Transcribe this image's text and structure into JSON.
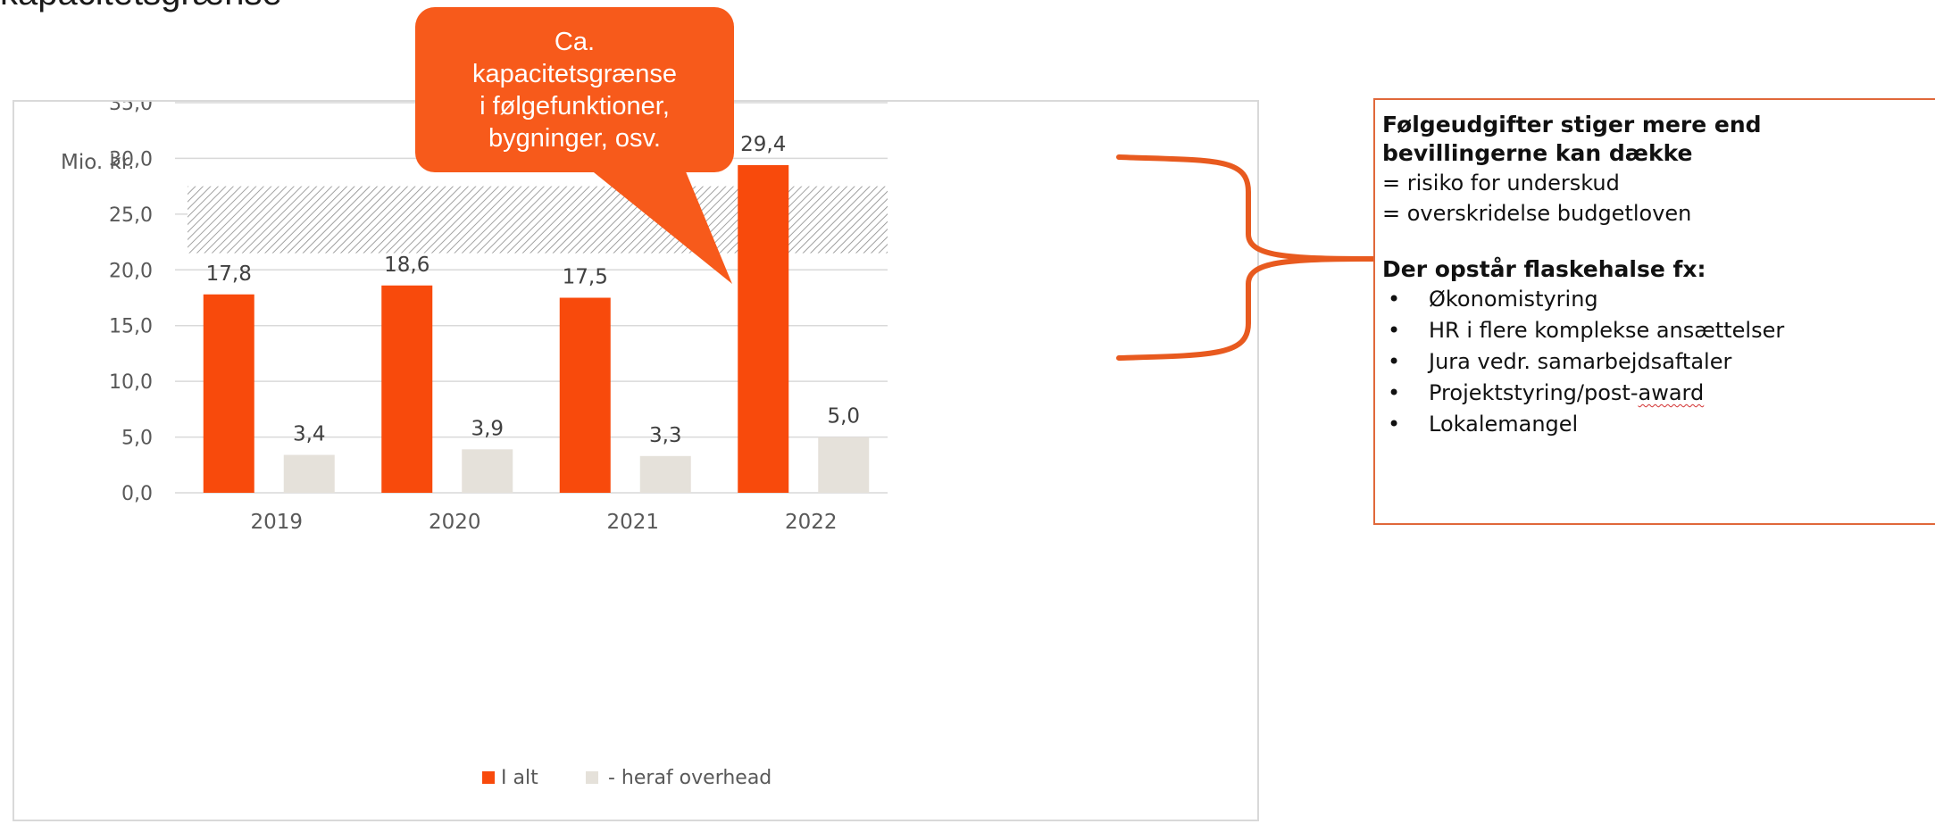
{
  "page": {
    "title": "kapacitetsgrænse"
  },
  "callout": {
    "lines": [
      "Ca.",
      "kapacitetsgrænse",
      "i følgefunktioner,",
      "bygninger, osv."
    ],
    "color": "#f75a1b"
  },
  "info_box": {
    "heading1_line1": "Følgeudgifter stiger mere end",
    "heading1_line2": "bevillingerne kan dække",
    "line1": "= risiko for underskud",
    "line2": "= overskridelse budgetloven",
    "heading2": "Der opstår flaskehalse fx:",
    "bullet_symbol": "•",
    "bullets": [
      "Økonomistyring",
      "HR i flere komplekse ansættelser",
      "Jura vedr. samarbejdsaftaler",
      "Projektstyring/post-",
      "Lokalemangel"
    ],
    "bullet4_underlined": "award",
    "border_color": "#e0683a",
    "bracket_color": "#e85a1f"
  },
  "chart_data": {
    "type": "bar",
    "ylabel": "Mio. kr.",
    "categories": [
      "2019",
      "2020",
      "2021",
      "2022"
    ],
    "series": [
      {
        "name": "I alt",
        "values": [
          17.8,
          18.6,
          17.5,
          29.4
        ],
        "labels": [
          "17,8",
          "18,6",
          "17,5",
          "29,4"
        ],
        "color": "#f84a0c"
      },
      {
        "name": "- heraf overhead",
        "values": [
          3.4,
          3.9,
          3.3,
          5.0
        ],
        "labels": [
          "3,4",
          "3,9",
          "3,3",
          "5,0"
        ],
        "color": "#e5e1da"
      }
    ],
    "ylim": [
      0,
      35
    ],
    "yticks": [
      "0,0",
      "5,0",
      "10,0",
      "15,0",
      "20,0",
      "25,0",
      "30,0",
      "35,0"
    ],
    "capacity_band": [
      21.5,
      27.5
    ],
    "grid": true,
    "legend": "bottom"
  }
}
